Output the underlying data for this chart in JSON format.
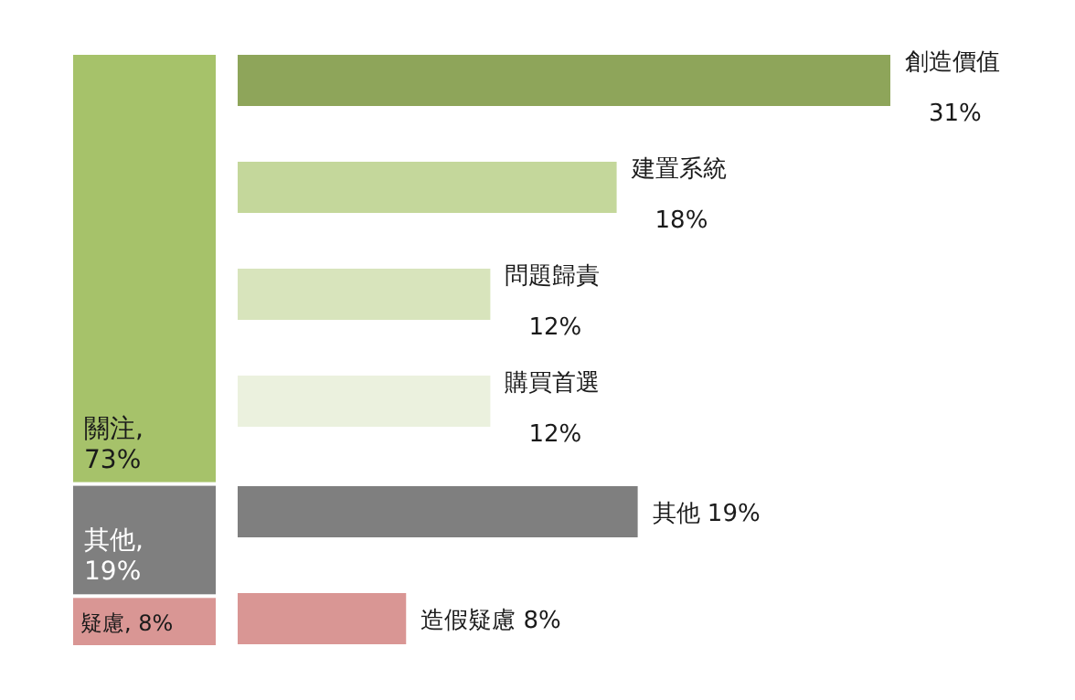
{
  "chart_data": [
    {
      "type": "bar",
      "stacked": true,
      "categories": [
        null
      ],
      "series": [
        {
          "name": "疑慮,",
          "color": "#d99694",
          "values": [
            8
          ],
          "value_labels": [
            "8%"
          ]
        },
        {
          "name": "其他,",
          "color": "#7f7f7f",
          "values": [
            19
          ],
          "value_labels": [
            "19%"
          ]
        },
        {
          "name": "關注,",
          "color": "#a6c26a",
          "values": [
            73
          ],
          "value_labels": [
            "73%"
          ]
        }
      ]
    },
    {
      "type": "bar",
      "orientation": "horizontal",
      "categories": [
        "創造價值",
        "建置系統",
        "問題歸責",
        "購買首選",
        "其他",
        "造假疑慮"
      ],
      "values": [
        31,
        18,
        12,
        12,
        19,
        8
      ],
      "value_labels": [
        "31%",
        "18%",
        "12%",
        "12%",
        "19%",
        "8%"
      ],
      "colors": [
        "#8ea55a",
        "#c4d79b",
        "#d8e4bc",
        "#ebf1de",
        "#7f7f7f",
        "#d99694"
      ]
    }
  ]
}
